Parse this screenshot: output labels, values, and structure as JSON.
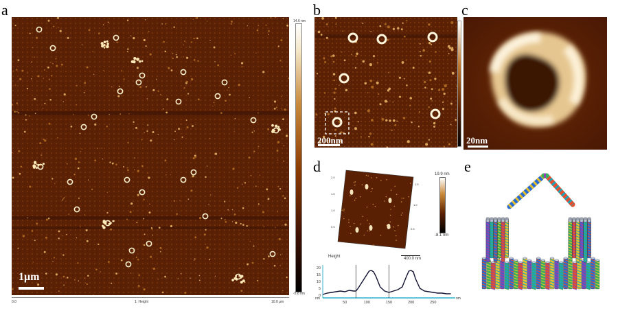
{
  "panels": {
    "a": {
      "label": "a",
      "scalebar": "1μm",
      "colorbar_top": "14.6 nm",
      "colorbar_bottom": "-5.8 nm",
      "axis_left": "0.0",
      "axis_right": "10.0 μm",
      "channel": "1: Height"
    },
    "b": {
      "label": "b",
      "scalebar": "200nm"
    },
    "c": {
      "label": "c",
      "scalebar": "20nm"
    },
    "d": {
      "label": "d",
      "colorbar_top": "19.9 nm",
      "colorbar_bottom": "-8.1 nm",
      "scan_size": "400.0 nm",
      "profile_title": "Height",
      "x_unit": "nm",
      "y_unit": "nm",
      "x_ticks": [
        "50",
        "100",
        "150",
        "200",
        "250"
      ],
      "y_ticks": [
        "20",
        "15",
        "10",
        "5",
        "0"
      ]
    },
    "e": {
      "label": "e"
    }
  },
  "chart_data": {
    "type": "line",
    "title": "Height",
    "xlabel": "nm",
    "ylabel": "nm",
    "xlim": [
      0,
      300
    ],
    "ylim": [
      -2,
      22
    ],
    "x": [
      0,
      10,
      20,
      30,
      40,
      50,
      60,
      70,
      75,
      80,
      90,
      100,
      105,
      110,
      115,
      120,
      130,
      140,
      150,
      160,
      170,
      180,
      190,
      195,
      200,
      205,
      210,
      220,
      230,
      240,
      250,
      260,
      270,
      280,
      290
    ],
    "series": [
      {
        "values": [
          0.5,
          1.5,
          2,
          2.5,
          3,
          2.5,
          3.5,
          3,
          3,
          5,
          10,
          15,
          17.5,
          18,
          17,
          14,
          6,
          3,
          2,
          3,
          4,
          6,
          14,
          17.5,
          18,
          17,
          12,
          5,
          3,
          2.5,
          2,
          1.5,
          1.5,
          1,
          1
        ]
      }
    ]
  }
}
